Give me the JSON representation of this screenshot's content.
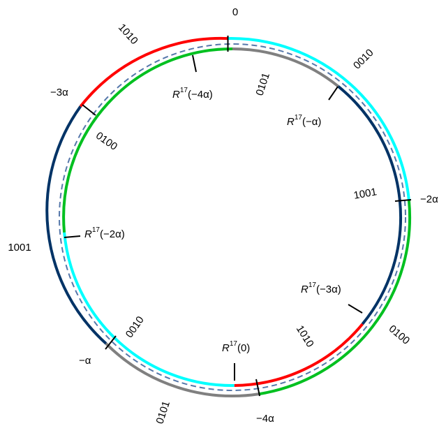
{
  "diagram": {
    "outer_boundary_labels": {
      "zero": "0",
      "neg_3alpha": "−3α",
      "neg_2alpha": "−2α",
      "neg_alpha": "−α",
      "neg_4alpha": "−4α"
    },
    "outer_word_labels": {
      "w1010": "1010",
      "w0010": "0010",
      "w1001": "1001",
      "w0100": "0100",
      "w0101": "0101"
    },
    "inner_word_labels": {
      "w0101": "0101",
      "w0100": "0100",
      "w1001": "1001",
      "w1010": "1010",
      "w0010": "0010"
    },
    "rotation_labels": {
      "r_neg4alpha": {
        "prefix": "R",
        "exp": "17",
        "arg": "(−4α)"
      },
      "r_negalpha": {
        "prefix": "R",
        "exp": "17",
        "arg": "(−α)"
      },
      "r_neg2alpha": {
        "prefix": "R",
        "exp": "17",
        "arg": "(−2α)"
      },
      "r_neg3alpha": {
        "prefix": "R",
        "exp": "17",
        "arg": "(−3α)"
      },
      "r_zero": {
        "prefix": "R",
        "exp": "17",
        "arg": "(0)"
      }
    },
    "colors": {
      "red": "#ff0000",
      "cyan": "#00ffff",
      "navy": "#003366",
      "green": "#00c020",
      "gray": "#808080",
      "dashed": "#5577aa",
      "tick": "#000000"
    }
  }
}
